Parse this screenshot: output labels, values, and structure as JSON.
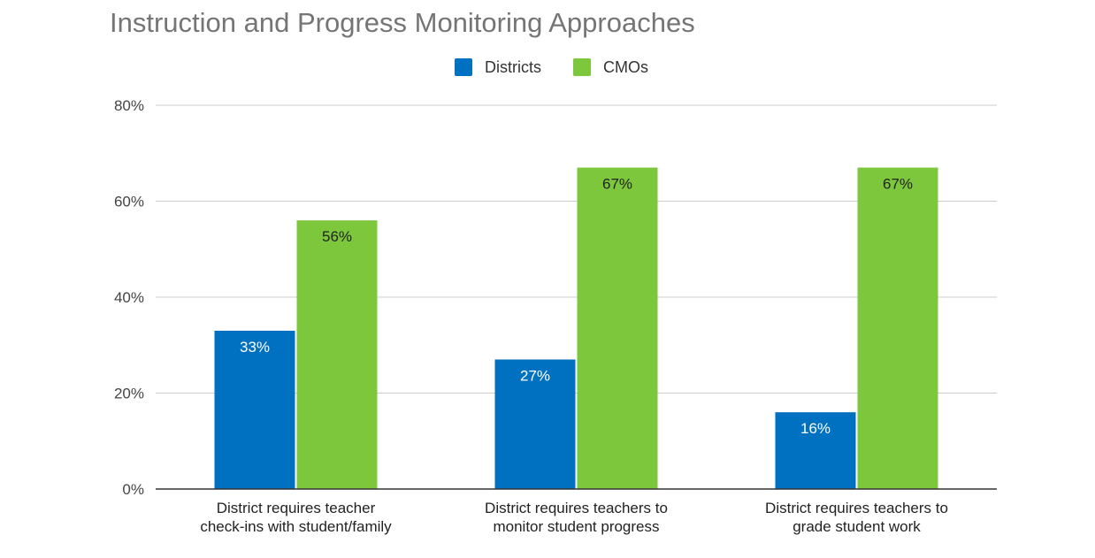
{
  "chart_data": {
    "type": "bar",
    "title": "Instruction and Progress Monitoring Approaches",
    "categories": [
      [
        "District requires teacher",
        "check-ins with student/family"
      ],
      [
        "District requires teachers to",
        "monitor student progress"
      ],
      [
        "District requires teachers to",
        "grade student work"
      ]
    ],
    "series": [
      {
        "name": "Districts",
        "color": "#0070c0",
        "label_color": "#ffffff",
        "values": [
          33,
          27,
          16
        ],
        "labels": [
          "33%",
          "27%",
          "16%"
        ]
      },
      {
        "name": "CMOs",
        "color": "#7dc73d",
        "label_color": "#222222",
        "values": [
          56,
          67,
          67
        ],
        "labels": [
          "56%",
          "67%",
          "67%"
        ]
      }
    ],
    "ylim": [
      0,
      80
    ],
    "yticks": [
      0,
      20,
      40,
      60,
      80
    ],
    "ytick_labels": [
      "0%",
      "20%",
      "40%",
      "60%",
      "80%"
    ],
    "grid": true,
    "legend_position": "top-center",
    "xlabel": "",
    "ylabel": ""
  }
}
